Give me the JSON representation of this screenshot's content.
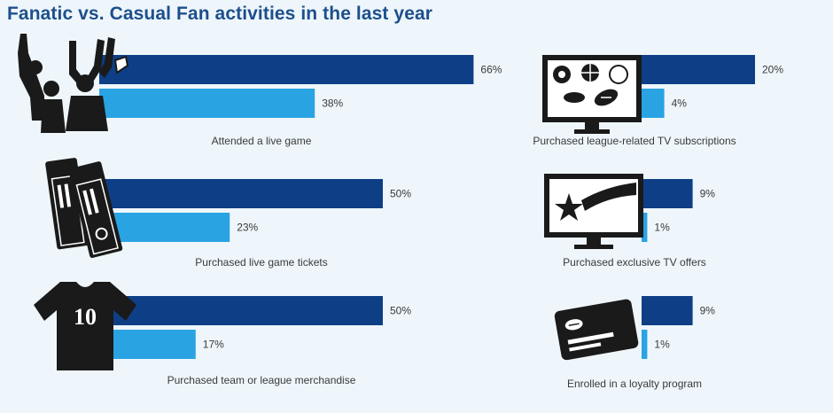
{
  "title": "Fanatic vs. Casual Fan activities in the last year",
  "colors": {
    "fanatic": "#0e3f86",
    "casual": "#2aa3e3",
    "icon": "#1a1a1a",
    "background": "#eef6fb"
  },
  "chart_data": [
    {
      "type": "bar",
      "orientation": "horizontal",
      "panel": "left",
      "categories": [
        "Attended a live game",
        "Purchased live game tickets",
        "Purchased team or league merchandise"
      ],
      "icons": [
        "cheering-fans-icon",
        "tickets-icon",
        "jersey-icon"
      ],
      "jersey_number": "10",
      "series": [
        {
          "values": [
            66,
            50,
            50
          ],
          "labels": [
            "66%",
            "50%",
            "50%"
          ]
        },
        {
          "values": [
            38,
            23,
            17
          ],
          "labels": [
            "38%",
            "23%",
            "17%"
          ]
        }
      ],
      "unit": "%"
    },
    {
      "type": "bar",
      "orientation": "horizontal",
      "panel": "right",
      "categories": [
        "Purchased league-related TV subscriptions",
        "Purchased exclusive TV offers",
        "Enrolled in a loyalty program"
      ],
      "icons": [
        "tv-sports-balls-icon",
        "tv-star-icon",
        "loyalty-card-icon"
      ],
      "series": [
        {
          "values": [
            20,
            9,
            9
          ],
          "labels": [
            "20%",
            "9%",
            "9%"
          ]
        },
        {
          "values": [
            4,
            1,
            1
          ],
          "labels": [
            "4%",
            "1%",
            "1%"
          ]
        }
      ],
      "unit": "%"
    }
  ]
}
